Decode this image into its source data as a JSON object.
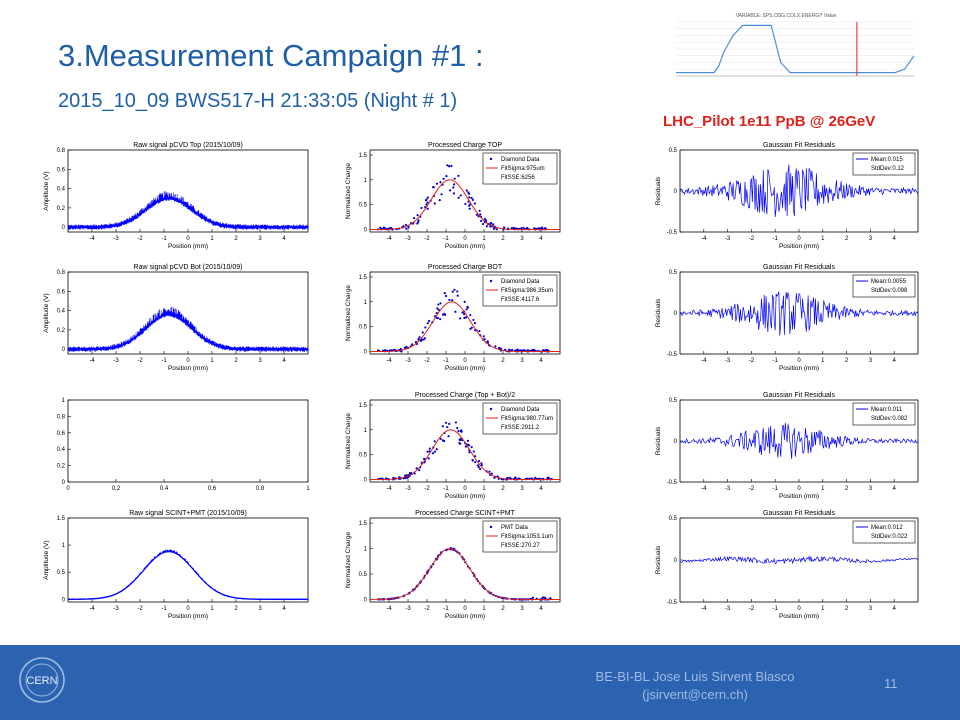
{
  "slide": {
    "title": "3.Measurement Campaign #1 :",
    "subtitle": "2015_10_09 BWS517-H 21:33:05 (Night # 1)",
    "beam_label": "LHC_Pilot 1e11 PpB @ 26GeV",
    "footer_line1": "BE-BI-BL Jose Luis Sirvent Blasco",
    "footer_line2": "(jsirvent@cern.ch)",
    "page_number": "11",
    "logo_text": "CERN",
    "colors": {
      "title": "#1f5fa8",
      "footer": "#2c63b0",
      "beam_label": "#e0201b",
      "trace": "#0000ff",
      "fit": "#e0201b"
    }
  },
  "energy_chart": {
    "title": "VARIABLE: SPS.OSG.COLX.ENERGY Value",
    "type": "line",
    "x": [
      0,
      4,
      8,
      12,
      16,
      18,
      20,
      24,
      28,
      32,
      36,
      38,
      40,
      44,
      48,
      52,
      56,
      60,
      64,
      68,
      72,
      76,
      80,
      84,
      88,
      92,
      96,
      100
    ],
    "y": [
      10,
      10,
      10,
      10,
      10,
      30,
      70,
      120,
      150,
      150,
      150,
      150,
      150,
      40,
      10,
      10,
      10,
      10,
      10,
      10,
      10,
      10,
      10,
      10,
      10,
      10,
      20,
      60
    ],
    "ylim": [
      0,
      160
    ],
    "marker_x": 76
  },
  "chart_data": [
    {
      "type": "line",
      "title": "Raw signal pCVD Top (2015/10/09)",
      "xlabel": "Position (mm)",
      "ylabel": "Amplitude (V)",
      "xlim": [
        -5,
        5
      ],
      "ylim": [
        -0.05,
        0.8
      ],
      "xticks": [
        "-4",
        "-3",
        "-2",
        "-1",
        "0",
        "1",
        "2",
        "3",
        "4"
      ],
      "yticks": [
        "0",
        "0.2",
        "0.4",
        "0.6",
        "0.8"
      ],
      "series": [
        {
          "kind": "noisy_gaussian",
          "amp": 0.3,
          "mu": -0.8,
          "sigma": 0.95,
          "noise": 0.12
        }
      ]
    },
    {
      "type": "scatter",
      "title": "Processed Charge TOP",
      "xlabel": "Position (mm)",
      "ylabel": "Normalized Charge",
      "xlim": [
        -5,
        5
      ],
      "ylim": [
        -0.05,
        1.6
      ],
      "xticks": [
        "-4",
        "-3",
        "-2",
        "-1",
        "0",
        "1",
        "2",
        "3",
        "4"
      ],
      "yticks": [
        "0",
        "0.5",
        "1",
        "1.5"
      ],
      "legend": [
        "Diamond Data",
        "FitSigma:975um",
        "FitSSE:6256"
      ],
      "series": [
        {
          "kind": "scatter_gauss",
          "amp": 1,
          "mu": -0.8,
          "sigma": 0.975,
          "noise": 0.3
        },
        {
          "kind": "fit",
          "amp": 1,
          "mu": -0.8,
          "sigma": 0.975
        }
      ]
    },
    {
      "type": "line",
      "title": "Gaussian Fit Residuals",
      "xlabel": "Position (mm)",
      "ylabel": "Residuals",
      "xlim": [
        -5,
        5
      ],
      "ylim": [
        -0.5,
        0.5
      ],
      "xticks": [
        "-4",
        "-3",
        "-2",
        "-1",
        "0",
        "1",
        "2",
        "3",
        "4"
      ],
      "yticks": [
        "-0.5",
        "0",
        "0.5"
      ],
      "legend": [
        "Mean:0.015",
        "StdDev:0.12"
      ],
      "series": [
        {
          "kind": "residual",
          "amp": 0.3,
          "sigma": 1.5
        }
      ]
    },
    {
      "type": "line",
      "title": "Raw signal pCVD Bot (2015/10/09)",
      "xlabel": "Position (mm)",
      "ylabel": "Amplitude (V)",
      "xlim": [
        -5,
        5
      ],
      "ylim": [
        -0.05,
        0.8
      ],
      "xticks": [
        "-4",
        "-3",
        "-2",
        "-1",
        "0",
        "1",
        "2",
        "3",
        "4"
      ],
      "yticks": [
        "0",
        "0.2",
        "0.4",
        "0.6",
        "0.8"
      ],
      "series": [
        {
          "kind": "noisy_gaussian",
          "amp": 0.36,
          "mu": -0.8,
          "sigma": 0.95,
          "noise": 0.12
        }
      ]
    },
    {
      "type": "scatter",
      "title": "Processed Charge BOT",
      "xlabel": "Position (mm)",
      "ylabel": "Normalized Charge",
      "xlim": [
        -5,
        5
      ],
      "ylim": [
        -0.05,
        1.6
      ],
      "xticks": [
        "-4",
        "-3",
        "-2",
        "-1",
        "0",
        "1",
        "2",
        "3",
        "4"
      ],
      "yticks": [
        "0",
        "0.5",
        "1",
        "1.5"
      ],
      "legend": [
        "Diamond Data",
        "FitSigma:986.35um",
        "FitSSE:4117.6"
      ],
      "series": [
        {
          "kind": "scatter_gauss",
          "amp": 1,
          "mu": -0.7,
          "sigma": 0.986,
          "noise": 0.25
        },
        {
          "kind": "fit",
          "amp": 1,
          "mu": -0.7,
          "sigma": 0.986
        }
      ]
    },
    {
      "type": "line",
      "title": "Gaussian Fit Residuals",
      "xlabel": "Position (mm)",
      "ylabel": "Residuals",
      "xlim": [
        -5,
        5
      ],
      "ylim": [
        -0.5,
        0.5
      ],
      "xticks": [
        "-4",
        "-3",
        "-2",
        "-1",
        "0",
        "1",
        "2",
        "3",
        "4"
      ],
      "yticks": [
        "-0.5",
        "0",
        "0.5"
      ],
      "legend": [
        "Mean:0.0055",
        "StdDev:0.098"
      ],
      "series": [
        {
          "kind": "residual",
          "amp": 0.25,
          "sigma": 1.4
        }
      ]
    },
    {
      "type": "line",
      "title": "",
      "xlabel": "",
      "ylabel": "",
      "xlim": [
        0,
        1
      ],
      "ylim": [
        0,
        1
      ],
      "xticks": [
        "0",
        "0.2",
        "0.4",
        "0.6",
        "0.8",
        "1"
      ],
      "yticks": [
        "0",
        "0.2",
        "0.4",
        "0.6",
        "0.8",
        "1"
      ],
      "series": []
    },
    {
      "type": "scatter",
      "title": "Processed Charge (Top + Bot)/2",
      "xlabel": "Position (mm)",
      "ylabel": "Normalized Charge",
      "xlim": [
        -5,
        5
      ],
      "ylim": [
        -0.05,
        1.6
      ],
      "xticks": [
        "-4",
        "-3",
        "-2",
        "-1",
        "0",
        "1",
        "2",
        "3",
        "4"
      ],
      "yticks": [
        "0",
        "0.5",
        "1",
        "1.5"
      ],
      "legend": [
        "Diamond Data",
        "FitSigma:980.77um",
        "FitSSE:2911.2"
      ],
      "series": [
        {
          "kind": "scatter_gauss",
          "amp": 1,
          "mu": -0.75,
          "sigma": 0.98,
          "noise": 0.2
        },
        {
          "kind": "fit",
          "amp": 1,
          "mu": -0.75,
          "sigma": 0.98
        }
      ]
    },
    {
      "type": "line",
      "title": "Gaussian Fit Residuals",
      "xlabel": "Position (mm)",
      "ylabel": "Residuals",
      "xlim": [
        -5,
        5
      ],
      "ylim": [
        -0.5,
        0.5
      ],
      "xticks": [
        "-4",
        "-3",
        "-2",
        "-1",
        "0",
        "1",
        "2",
        "3",
        "4"
      ],
      "yticks": [
        "-0.5",
        "0",
        "0.5"
      ],
      "legend": [
        "Mean:0.011",
        "StdDev:0.082"
      ],
      "series": [
        {
          "kind": "residual",
          "amp": 0.2,
          "sigma": 1.4
        }
      ]
    },
    {
      "type": "line",
      "title": "Raw signal SCINT+PMT (2015/10/09)",
      "xlabel": "Position (mm)",
      "ylabel": "Amplitude (V)",
      "xlim": [
        -5,
        5
      ],
      "ylim": [
        -0.05,
        1.5
      ],
      "xticks": [
        "-4",
        "-3",
        "-2",
        "-1",
        "0",
        "1",
        "2",
        "3",
        "4"
      ],
      "yticks": [
        "0",
        "0.5",
        "1",
        "1.5"
      ],
      "series": [
        {
          "kind": "noisy_gaussian",
          "amp": 0.88,
          "mu": -0.8,
          "sigma": 1.05,
          "noise": 0.03
        }
      ]
    },
    {
      "type": "scatter",
      "title": "Processed Charge SCINT+PMT",
      "xlabel": "Position (mm)",
      "ylabel": "Normalized Charge",
      "xlim": [
        -5,
        5
      ],
      "ylim": [
        -0.05,
        1.6
      ],
      "xticks": [
        "-4",
        "-3",
        "-2",
        "-1",
        "0",
        "1",
        "2",
        "3",
        "4"
      ],
      "yticks": [
        "0",
        "0.5",
        "1",
        "1.5"
      ],
      "legend": [
        "PMT Data",
        "FitSigma:1053.1um",
        "FitSSE:270.27"
      ],
      "series": [
        {
          "kind": "scatter_gauss",
          "amp": 1,
          "mu": -0.8,
          "sigma": 1.05,
          "noise": 0.02
        },
        {
          "kind": "fit",
          "amp": 1,
          "mu": -0.8,
          "sigma": 1.05
        }
      ]
    },
    {
      "type": "line",
      "title": "Gaussian Fit Residuals",
      "xlabel": "Position (mm)",
      "ylabel": "Residuals",
      "xlim": [
        -5,
        5
      ],
      "ylim": [
        -0.5,
        0.5
      ],
      "xticks": [
        "-4",
        "-3",
        "-2",
        "-1",
        "0",
        "1",
        "2",
        "3",
        "4"
      ],
      "yticks": [
        "-0.5",
        "0",
        "0.5"
      ],
      "legend": [
        "Mean:0.012",
        "StdDev:0.022"
      ],
      "series": [
        {
          "kind": "residual",
          "amp": 0.03,
          "sigma": 3
        }
      ]
    }
  ]
}
